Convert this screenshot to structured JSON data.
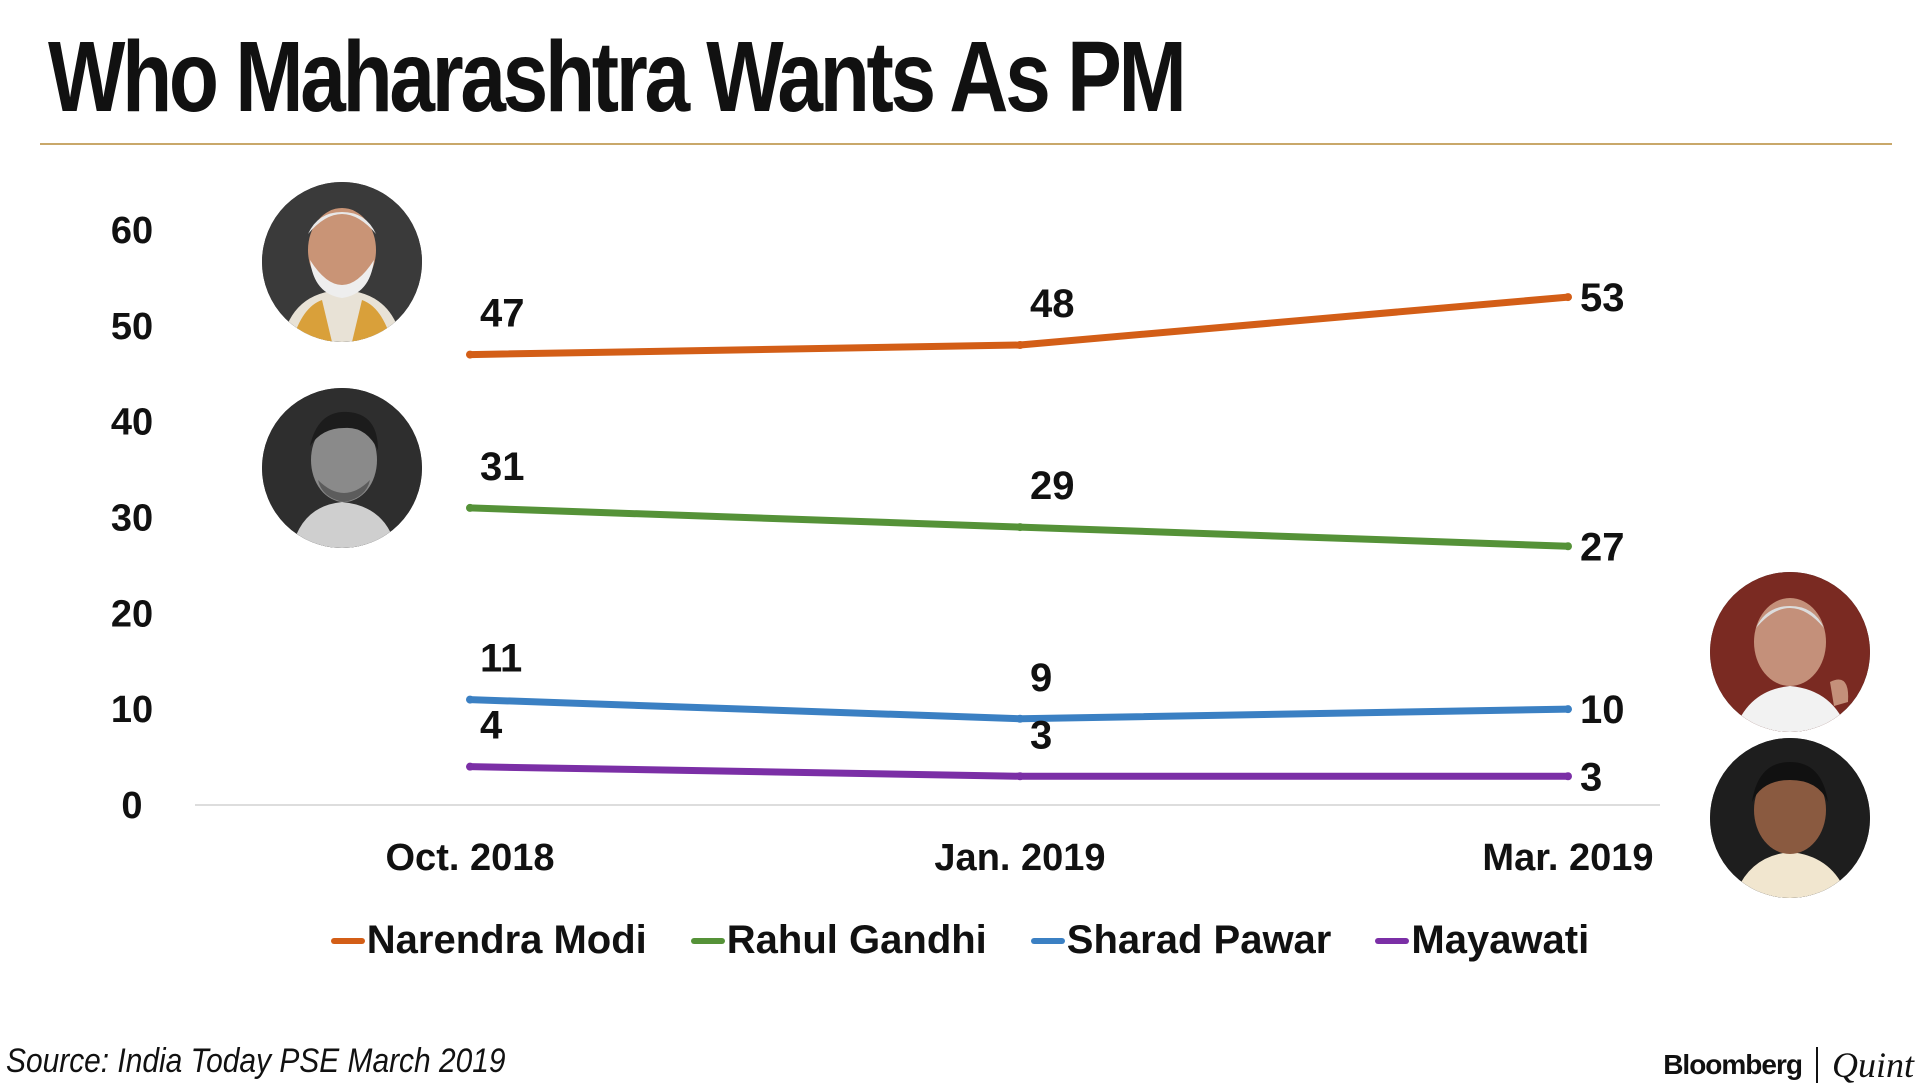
{
  "title": "Who Maharashtra Wants As PM",
  "source": "Source: India Today PSE March 2019",
  "brand": {
    "left": "Bloomberg",
    "right": "Quint"
  },
  "colors": {
    "modi": "#d35e17",
    "gandhi": "#559238",
    "pawar": "#3b80c3",
    "mayawati": "#7b2fa6",
    "rule": "#c9a86a",
    "baseline": "#dddddd"
  },
  "chart_data": {
    "type": "line",
    "title": "Who Maharashtra Wants As PM",
    "xlabel": "",
    "ylabel": "",
    "categories": [
      "Oct. 2018",
      "Jan. 2019",
      "Mar. 2019"
    ],
    "yticks": [
      0,
      10,
      20,
      30,
      40,
      50,
      60
    ],
    "ylim": [
      0,
      60
    ],
    "grid": false,
    "legend_position": "bottom",
    "series": [
      {
        "key": "modi",
        "name": "Narendra Modi",
        "values": [
          47,
          48,
          53
        ]
      },
      {
        "key": "gandhi",
        "name": "Rahul Gandhi",
        "values": [
          31,
          29,
          27
        ]
      },
      {
        "key": "pawar",
        "name": "Sharad Pawar",
        "values": [
          11,
          9,
          10
        ]
      },
      {
        "key": "mayawati",
        "name": "Mayawati",
        "values": [
          4,
          3,
          3
        ]
      }
    ]
  }
}
